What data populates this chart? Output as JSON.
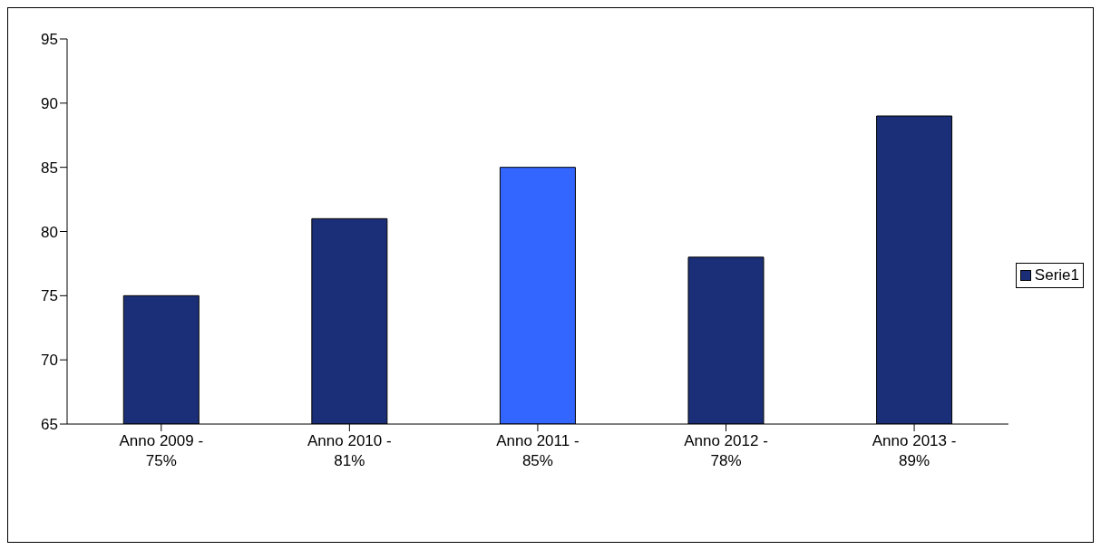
{
  "chart_data": {
    "type": "bar",
    "categories": [
      "Anno 2009 - 75%",
      "Anno 2010 - 81%",
      "Anno 2011 - 85%",
      "Anno 2012 - 78%",
      "Anno 2013 - 89%"
    ],
    "series": [
      {
        "name": "Serie1",
        "color": "#1b2f78",
        "colors": [
          "#1b2f78",
          "#1b2f78",
          "#3366ff",
          "#1b2f78",
          "#1b2f78"
        ],
        "values": [
          75,
          81,
          85,
          78,
          89
        ]
      }
    ],
    "ylim": [
      65,
      95
    ],
    "yticks": [
      65,
      70,
      75,
      80,
      85,
      90,
      95
    ],
    "grid": false,
    "legend": "right"
  }
}
